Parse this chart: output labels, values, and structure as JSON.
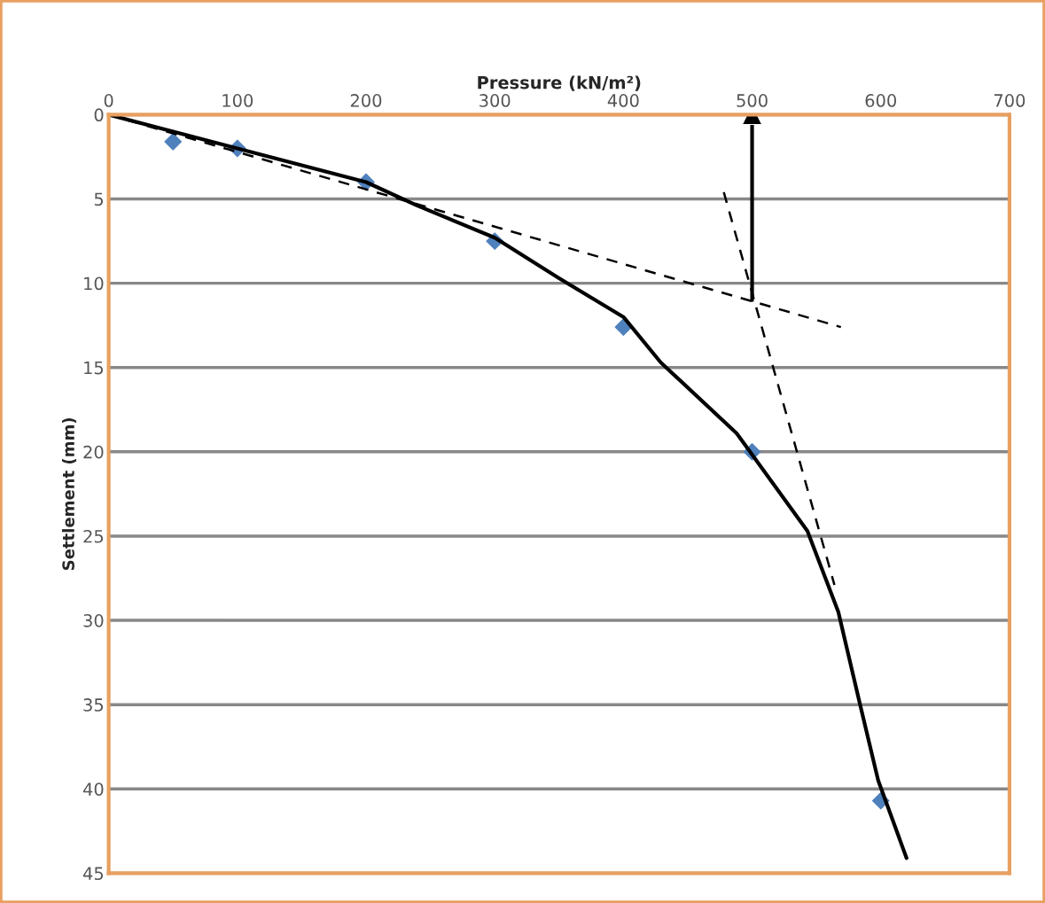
{
  "chart_data": {
    "type": "scatter",
    "xlabel": "Pressure (kN/m²)",
    "ylabel": "Settlement (mm)",
    "xlim": [
      0,
      700
    ],
    "xticks": [
      0,
      100,
      200,
      300,
      400,
      500,
      600,
      700
    ],
    "ylim": [
      45,
      0
    ],
    "yticks": [
      0,
      5,
      10,
      15,
      20,
      25,
      30,
      35,
      40,
      45
    ],
    "grid": "y",
    "legend": false,
    "series": [
      {
        "color": "#4f81bd",
        "marker": "diamond",
        "x": [
          50,
          100,
          200,
          300,
          400,
          500,
          600
        ],
        "values": [
          1.6,
          2,
          4,
          7.5,
          12.6,
          20,
          40.7
        ]
      },
      {
        "type": "line",
        "color": "#000000",
        "line_style": "solid",
        "marker": "none",
        "x": [
          0,
          100,
          200,
          240,
          300,
          350,
          400,
          429,
          488,
          543,
          567,
          583,
          598,
          620
        ],
        "values": [
          0,
          2,
          4,
          5.4,
          7.3,
          9.7,
          12,
          14.7,
          18.9,
          24.7,
          29.5,
          34.7,
          39.5,
          44.1
        ]
      },
      {
        "type": "line",
        "color": "#000000",
        "line_style": "dashed",
        "marker": "none",
        "x": [
          0,
          569
        ],
        "values": [
          0,
          12.6
        ]
      },
      {
        "type": "line",
        "color": "#000000",
        "line_style": "dashed",
        "marker": "none",
        "x": [
          478,
          564
        ],
        "values": [
          4.6,
          27.9
        ]
      },
      {
        "type": "line",
        "color": "#000000",
        "line_style": "solid",
        "marker": "triangle",
        "x": [
          500,
          500
        ],
        "values": [
          11,
          0
        ]
      }
    ]
  }
}
